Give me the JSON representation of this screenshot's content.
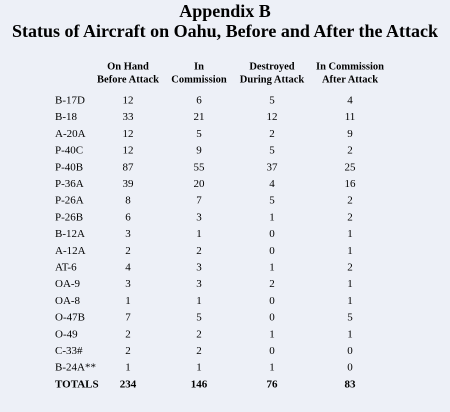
{
  "header": {
    "title": "Appendix B",
    "subtitle": "Status of Aircraft on Oahu, Before and After the Attack"
  },
  "table": {
    "columns": [
      [
        "On Hand",
        "Before Attack"
      ],
      [
        "In",
        "Commission"
      ],
      [
        "Destroyed",
        "During Attack"
      ],
      [
        "In Commission",
        "After Attack"
      ]
    ],
    "rows": [
      [
        "B-17D",
        12,
        6,
        5,
        4
      ],
      [
        "B-18",
        33,
        21,
        12,
        11
      ],
      [
        "A-20A",
        12,
        5,
        2,
        9
      ],
      [
        "P-40C",
        12,
        9,
        5,
        2
      ],
      [
        "P-40B",
        87,
        55,
        37,
        25
      ],
      [
        "P-36A",
        39,
        20,
        4,
        16
      ],
      [
        "P-26A",
        8,
        7,
        5,
        2
      ],
      [
        "P-26B",
        6,
        3,
        1,
        2
      ],
      [
        "B-12A",
        3,
        1,
        0,
        1
      ],
      [
        "A-12A",
        2,
        2,
        0,
        1
      ],
      [
        "AT-6",
        4,
        3,
        1,
        2
      ],
      [
        "OA-9",
        3,
        3,
        2,
        1
      ],
      [
        "OA-8",
        1,
        1,
        0,
        1
      ],
      [
        "O-47B",
        7,
        5,
        0,
        5
      ],
      [
        "O-49",
        2,
        2,
        1,
        1
      ],
      [
        "C-33#",
        2,
        2,
        0,
        0
      ],
      [
        "B-24A**",
        1,
        1,
        1,
        0
      ]
    ],
    "totals": [
      "TOTALS",
      234,
      146,
      76,
      83
    ]
  }
}
